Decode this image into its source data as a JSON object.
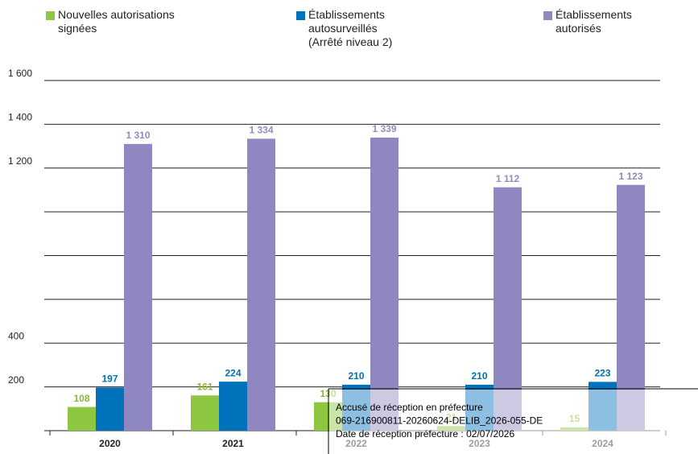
{
  "chart_data": {
    "type": "bar",
    "categories": [
      "2020",
      "2021",
      "2022",
      "2023",
      "2024"
    ],
    "series": [
      {
        "name": "Nouvelles autorisations signées",
        "color": "#8dc63f",
        "label_color": "#8ab832",
        "values": [
          108,
          161,
          130,
          21,
          15
        ]
      },
      {
        "name": "Établissements autosurveillés (Arrêté niveau 2)",
        "color": "#0072bc",
        "label_color": "#0070b0",
        "values": [
          197,
          224,
          210,
          210,
          223
        ]
      },
      {
        "name": "Établissements autorisés",
        "color": "#8e87c0",
        "label_color": "#9589c2",
        "values": [
          1310,
          1334,
          1339,
          1112,
          1123
        ],
        "value_labels": [
          "1 310",
          "1 334",
          "1 339",
          "1 112",
          "1 123"
        ]
      }
    ],
    "ylim": [
      0,
      1600
    ],
    "yticks": [
      200,
      400,
      {
        "value": 1200,
        "label": "1 200"
      },
      {
        "value": 1400,
        "label": "1 400"
      },
      {
        "value": 1600,
        "label": "1 600"
      }
    ],
    "minor_gridlines": [
      600,
      800,
      1000
    ],
    "grid": true
  },
  "stamp": {
    "lines": [
      "Accusé de réception en préfecture",
      "069-216900811-20260624-DELIB_2026-055-DE",
      "Date de réception préfecture : 02/07/2026"
    ]
  }
}
